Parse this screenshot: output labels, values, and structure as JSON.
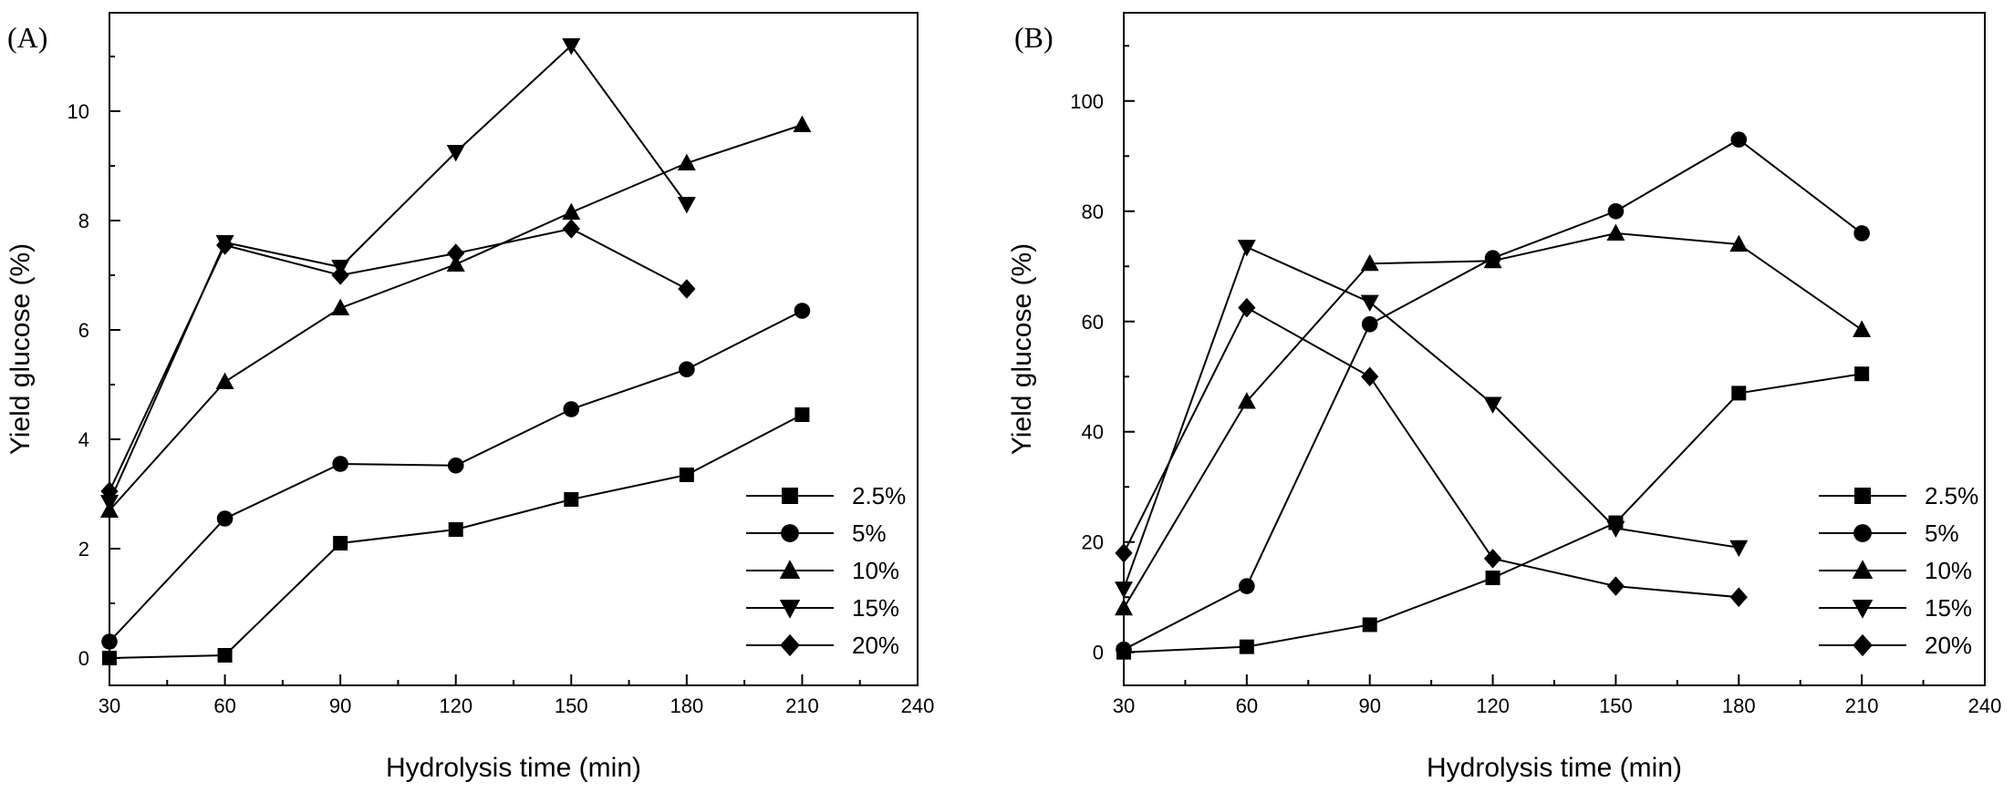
{
  "chart_data": [
    {
      "type": "line",
      "panel_label": "(A)",
      "xlabel": "Hydrolysis time (min)",
      "ylabel": "Yield glucose (%)",
      "xlim": [
        30,
        240
      ],
      "ylim": [
        -0.5,
        11.8
      ],
      "xticks": [
        30,
        60,
        90,
        120,
        150,
        180,
        210,
        240
      ],
      "yticks": [
        0,
        2,
        4,
        6,
        8,
        10
      ],
      "xtick_labels": [
        "30",
        "60",
        "90",
        "120",
        "150",
        "180",
        "210",
        "240"
      ],
      "ytick_labels": [
        "0",
        "2",
        "4",
        "6",
        "8",
        "10"
      ],
      "legend_position": "bottom-right",
      "series": [
        {
          "name": "2.5%",
          "marker": "square",
          "x": [
            30,
            60,
            90,
            120,
            150,
            180,
            210
          ],
          "values": [
            0.0,
            0.05,
            2.1,
            2.35,
            2.9,
            3.35,
            4.45
          ]
        },
        {
          "name": "5%",
          "marker": "circle",
          "x": [
            30,
            60,
            90,
            120,
            150,
            180,
            210
          ],
          "values": [
            0.3,
            2.55,
            3.55,
            3.52,
            4.55,
            5.28,
            6.35
          ]
        },
        {
          "name": "10%",
          "marker": "triangle-up",
          "x": [
            30,
            60,
            90,
            120,
            150,
            180,
            210
          ],
          "values": [
            2.7,
            5.05,
            6.4,
            7.2,
            8.15,
            9.05,
            9.75
          ]
        },
        {
          "name": "15%",
          "marker": "triangle-down",
          "x": [
            30,
            60,
            90,
            120,
            150,
            180
          ],
          "values": [
            2.85,
            7.6,
            7.15,
            9.25,
            11.2,
            8.3
          ]
        },
        {
          "name": "20%",
          "marker": "diamond",
          "x": [
            30,
            60,
            90,
            120,
            150,
            180
          ],
          "values": [
            3.05,
            7.55,
            7.0,
            7.4,
            7.85,
            6.75
          ]
        }
      ]
    },
    {
      "type": "line",
      "panel_label": "(B)",
      "xlabel": "Hydrolysis time (min)",
      "ylabel": "Yield glucose (%)",
      "xlim": [
        30,
        240
      ],
      "ylim": [
        -6,
        116
      ],
      "xticks": [
        30,
        60,
        90,
        120,
        150,
        180,
        210,
        240
      ],
      "yticks": [
        0,
        20,
        40,
        60,
        80,
        100
      ],
      "xtick_labels": [
        "30",
        "60",
        "90",
        "120",
        "150",
        "180",
        "210",
        "240"
      ],
      "ytick_labels": [
        "0",
        "20",
        "40",
        "60",
        "80",
        "100"
      ],
      "legend_position": "bottom-right",
      "series": [
        {
          "name": "2.5%",
          "marker": "square",
          "x": [
            30,
            60,
            90,
            120,
            150,
            180,
            210
          ],
          "values": [
            0.0,
            1.0,
            5.0,
            13.5,
            23.5,
            47.0,
            50.5
          ]
        },
        {
          "name": "5%",
          "marker": "circle",
          "x": [
            30,
            60,
            90,
            120,
            150,
            180,
            210
          ],
          "values": [
            0.5,
            12.0,
            59.5,
            71.5,
            80.0,
            93.0,
            76.0
          ]
        },
        {
          "name": "10%",
          "marker": "triangle-up",
          "x": [
            30,
            60,
            90,
            120,
            150,
            180,
            210
          ],
          "values": [
            8.0,
            45.5,
            70.5,
            71.0,
            76.0,
            74.0,
            58.5
          ]
        },
        {
          "name": "15%",
          "marker": "triangle-down",
          "x": [
            30,
            60,
            90,
            120,
            150,
            180
          ],
          "values": [
            11.5,
            73.5,
            63.5,
            45.0,
            22.5,
            19.0
          ]
        },
        {
          "name": "20%",
          "marker": "diamond",
          "x": [
            30,
            60,
            90,
            120,
            150,
            180
          ],
          "values": [
            18.0,
            62.5,
            50.0,
            17.0,
            12.0,
            10.0
          ]
        }
      ]
    }
  ]
}
